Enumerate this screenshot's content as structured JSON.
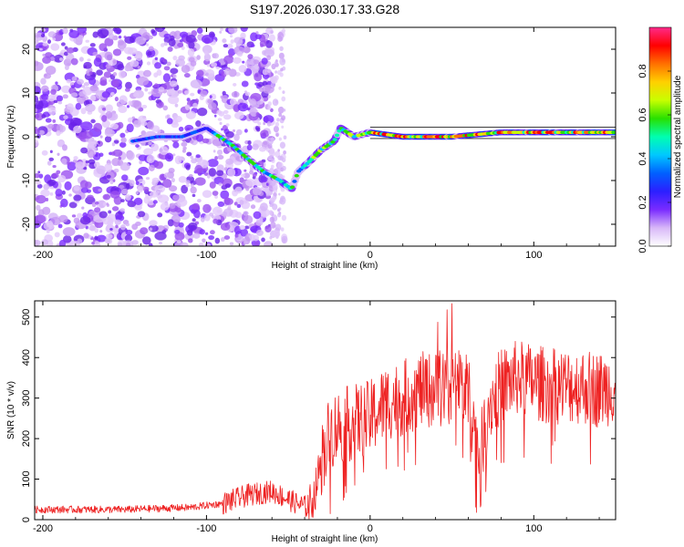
{
  "title": "S197.2026.030.17.33.G28",
  "chart_data": [
    {
      "type": "heatmap",
      "xlabel": "Height of straight line (km)",
      "ylabel": "Frequency (Hz)",
      "xlim": [
        -205,
        150
      ],
      "ylim": [
        -25,
        25
      ],
      "xticks": [
        -200,
        -100,
        0,
        100
      ],
      "yticks": [
        -20,
        -10,
        0,
        10,
        20
      ],
      "colorbar": {
        "label": "Normalized spectral amplitude",
        "range": [
          0,
          1
        ],
        "ticks": [
          "0.0",
          "0.2",
          "0.4",
          "0.6",
          "0.8"
        ],
        "colors": [
          "#ffffff",
          "#d8b8f8",
          "#7a2cff",
          "#2b1fff",
          "#0060ff",
          "#00c8ff",
          "#00ffb0",
          "#28e000",
          "#c8ff00",
          "#ffd000",
          "#ff7000",
          "#ff0000",
          "#ff2a8a"
        ]
      },
      "signal_track": [
        {
          "x": -145,
          "y": -1
        },
        {
          "x": -130,
          "y": 0
        },
        {
          "x": -115,
          "y": 0
        },
        {
          "x": -100,
          "y": 2
        },
        {
          "x": -92,
          "y": 0
        },
        {
          "x": -84,
          "y": -2
        },
        {
          "x": -75,
          "y": -5
        },
        {
          "x": -65,
          "y": -8
        },
        {
          "x": -55,
          "y": -10
        },
        {
          "x": -48,
          "y": -12
        },
        {
          "x": -44,
          "y": -8
        },
        {
          "x": -38,
          "y": -6
        },
        {
          "x": -30,
          "y": -3
        },
        {
          "x": -22,
          "y": -1
        },
        {
          "x": -18,
          "y": 2
        },
        {
          "x": -10,
          "y": 0
        },
        {
          "x": 0,
          "y": 1
        },
        {
          "x": 20,
          "y": 0
        },
        {
          "x": 50,
          "y": 0
        },
        {
          "x": 80,
          "y": 1
        },
        {
          "x": 110,
          "y": 1
        },
        {
          "x": 150,
          "y": 1
        }
      ],
      "noise_region_x": [
        -205,
        -50
      ]
    },
    {
      "type": "line",
      "xlabel": "Height of straight line (km)",
      "ylabel": "SNR (10 * v/v)",
      "xlim": [
        -205,
        150
      ],
      "ylim": [
        0,
        540
      ],
      "xticks": [
        -200,
        -100,
        0,
        100
      ],
      "yticks": [
        0,
        100,
        200,
        300,
        400,
        500
      ],
      "color": "#ee2222",
      "series_envelope": [
        {
          "x": -205,
          "y": 25
        },
        {
          "x": -150,
          "y": 25
        },
        {
          "x": -110,
          "y": 30
        },
        {
          "x": -90,
          "y": 40
        },
        {
          "x": -75,
          "y": 60
        },
        {
          "x": -60,
          "y": 70
        },
        {
          "x": -45,
          "y": 40
        },
        {
          "x": -38,
          "y": 30
        },
        {
          "x": -34,
          "y": 60
        },
        {
          "x": -30,
          "y": 150
        },
        {
          "x": -25,
          "y": 210
        },
        {
          "x": -20,
          "y": 230
        },
        {
          "x": -10,
          "y": 240
        },
        {
          "x": 0,
          "y": 250
        },
        {
          "x": 10,
          "y": 290
        },
        {
          "x": 20,
          "y": 300
        },
        {
          "x": 30,
          "y": 320
        },
        {
          "x": 40,
          "y": 320
        },
        {
          "x": 50,
          "y": 330
        },
        {
          "x": 55,
          "y": 340
        },
        {
          "x": 60,
          "y": 310
        },
        {
          "x": 67,
          "y": 150
        },
        {
          "x": 72,
          "y": 280
        },
        {
          "x": 80,
          "y": 330
        },
        {
          "x": 90,
          "y": 350
        },
        {
          "x": 100,
          "y": 340
        },
        {
          "x": 110,
          "y": 330
        },
        {
          "x": 120,
          "y": 330
        },
        {
          "x": 130,
          "y": 330
        },
        {
          "x": 140,
          "y": 320
        },
        {
          "x": 150,
          "y": 330
        }
      ]
    }
  ]
}
